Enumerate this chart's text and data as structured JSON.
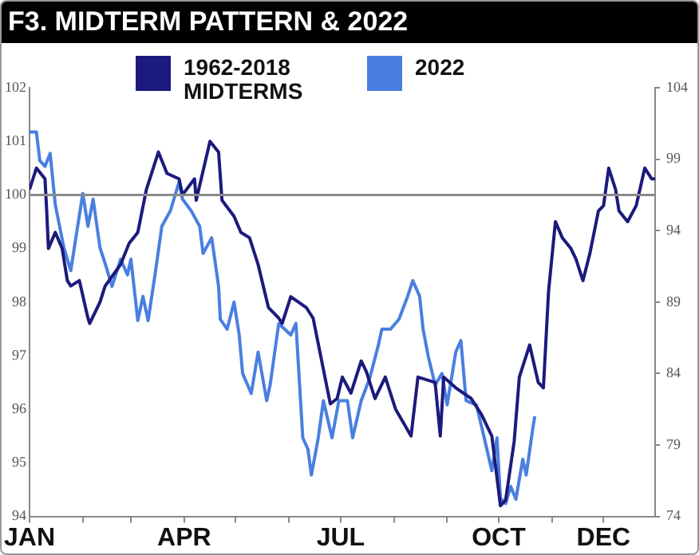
{
  "chart_data": {
    "type": "line",
    "title": "F3. MIDTERM PATTERN & 2022",
    "xlim": [
      "--01-01",
      "--12-31"
    ],
    "xticks": [
      {
        "value": "--01-01",
        "label": "JAN"
      },
      {
        "value": "--02-01",
        "label": null
      },
      {
        "value": "--03-01",
        "label": null
      },
      {
        "value": "--04-01",
        "label": "APR"
      },
      {
        "value": "--05-01",
        "label": null
      },
      {
        "value": "--06-01",
        "label": null
      },
      {
        "value": "--07-01",
        "label": "JUL"
      },
      {
        "value": "--08-01",
        "label": null
      },
      {
        "value": "--09-01",
        "label": null
      },
      {
        "value": "--10-01",
        "label": "OCT"
      },
      {
        "value": "--11-01",
        "label": null
      },
      {
        "value": "--12-01",
        "label": "DEC"
      }
    ],
    "ylim": [
      94,
      102
    ],
    "yticks": [
      94,
      95,
      96,
      97,
      98,
      99,
      100,
      101,
      102
    ],
    "y2lim": [
      74,
      104
    ],
    "y2ticks": [
      74,
      79,
      84,
      89,
      94,
      99,
      104
    ],
    "grid": false,
    "legend": "top",
    "marker": "none",
    "line_style": "solid",
    "ref_lines": [
      {
        "axis": "y",
        "value": 100,
        "label": null,
        "color": "#8a8a8a"
      }
    ],
    "series": [
      {
        "name": "1962-2018 MIDTERMS",
        "color": "#1c1a7c",
        "axis": "y",
        "x": [
          "--01-01",
          "--01-05",
          "--01-10",
          "--01-11",
          "--01-12",
          "--01-16",
          "--01-20",
          "--01-23",
          "--01-25",
          "--01-30",
          "--02-04",
          "--02-05",
          "--02-11",
          "--02-14",
          "--02-23",
          "--02-28",
          "--03-05",
          "--03-10",
          "--03-17",
          "--03-22",
          "--03-29",
          "--03-31",
          "--04-07",
          "--04-08",
          "--04-16",
          "--04-21",
          "--04-23",
          "--04-30",
          "--05-04",
          "--05-09",
          "--05-14",
          "--05-20",
          "--05-26",
          "--05-28",
          "--06-02",
          "--06-11",
          "--06-15",
          "--06-25",
          "--06-29",
          "--07-02",
          "--07-07",
          "--07-13",
          "--07-16",
          "--07-21",
          "--07-27",
          "--08-02",
          "--08-11",
          "--08-15",
          "--08-25",
          "--08-28",
          "--08-30",
          "--09-06",
          "--09-15",
          "--09-21",
          "--09-27",
          "--10-02",
          "--10-05",
          "--10-10",
          "--10-13",
          "--10-19",
          "--10-24",
          "--10-27",
          "--10-30",
          "--11-03",
          "--11-07",
          "--11-12",
          "--11-15",
          "--11-19",
          "--11-23",
          "--11-28",
          "--12-01",
          "--12-04",
          "--12-08",
          "--12-10",
          "--12-15",
          "--12-20",
          "--12-25",
          "--12-29",
          "--12-31"
        ],
        "values": [
          100.1,
          100.5,
          100.3,
          99.7,
          99.0,
          99.3,
          99.0,
          98.4,
          98.3,
          98.4,
          97.7,
          97.6,
          98.0,
          98.3,
          98.7,
          99.1,
          99.3,
          100.1,
          100.8,
          100.4,
          100.3,
          100.0,
          100.3,
          99.9,
          101.0,
          100.8,
          99.9,
          99.6,
          99.3,
          99.2,
          98.7,
          97.9,
          97.7,
          97.6,
          98.1,
          97.9,
          97.7,
          96.1,
          96.2,
          96.6,
          96.3,
          96.9,
          96.7,
          96.2,
          96.6,
          96.0,
          95.5,
          96.6,
          96.5,
          95.5,
          96.6,
          96.4,
          96.2,
          95.9,
          95.5,
          94.2,
          94.3,
          95.4,
          96.6,
          97.2,
          96.5,
          96.4,
          98.2,
          99.5,
          99.2,
          99.0,
          98.8,
          98.4,
          98.9,
          99.7,
          99.8,
          100.5,
          100.1,
          99.7,
          99.5,
          99.8,
          100.5,
          100.3,
          100.3
        ]
      },
      {
        "name": "2022",
        "color": "#4a7fe0",
        "axis": "y2",
        "x": [
          "--01-01",
          "--01-05",
          "--01-07",
          "--01-10",
          "--01-13",
          "--01-16",
          "--01-21",
          "--01-25",
          "--01-29",
          "--02-01",
          "--02-04",
          "--02-07",
          "--02-11",
          "--02-14",
          "--02-18",
          "--02-23",
          "--02-27",
          "--03-01",
          "--03-05",
          "--03-08",
          "--03-11",
          "--03-15",
          "--03-19",
          "--03-24",
          "--03-27",
          "--03-29",
          "--03-31",
          "--04-05",
          "--04-10",
          "--04-12",
          "--04-17",
          "--04-21",
          "--04-22",
          "--04-26",
          "--04-30",
          "--05-03",
          "--05-05",
          "--05-10",
          "--05-14",
          "--05-19",
          "--05-21",
          "--05-26",
          "--06-02",
          "--06-05",
          "--06-09",
          "--06-12",
          "--06-14",
          "--06-18",
          "--06-21",
          "--06-26",
          "--06-30",
          "--07-05",
          "--07-08",
          "--07-13",
          "--07-18",
          "--07-23",
          "--07-25",
          "--07-30",
          "--08-04",
          "--08-09",
          "--08-12",
          "--08-16",
          "--08-18",
          "--08-21",
          "--08-25",
          "--08-29",
          "--09-01",
          "--09-06",
          "--09-09",
          "--09-12",
          "--09-18",
          "--09-22",
          "--09-27",
          "--09-30",
          "--10-02",
          "--10-05",
          "--10-08",
          "--10-11",
          "--10-15",
          "--10-17",
          "--10-21",
          "--10-22"
        ],
        "values": [
          100.9,
          100.9,
          98.9,
          98.5,
          99.4,
          95.8,
          92.8,
          91.2,
          94.3,
          96.6,
          94.3,
          96.2,
          92.8,
          91.7,
          90.1,
          92.0,
          90.9,
          92.0,
          87.7,
          89.4,
          87.7,
          90.9,
          94.3,
          95.4,
          96.6,
          97.4,
          96.2,
          95.4,
          94.3,
          92.4,
          93.5,
          90.1,
          87.8,
          87.1,
          89.0,
          86.7,
          84.0,
          82.6,
          85.5,
          82.1,
          83.2,
          87.5,
          86.7,
          87.5,
          79.5,
          78.7,
          76.9,
          79.5,
          82.1,
          79.5,
          82.1,
          82.1,
          79.5,
          82.1,
          83.7,
          86.0,
          87.1,
          87.1,
          87.8,
          89.4,
          90.5,
          89.4,
          87.1,
          85.2,
          83.2,
          84.0,
          81.8,
          85.5,
          86.3,
          82.1,
          81.8,
          79.8,
          77.2,
          79.5,
          75.3,
          74.9,
          76.1,
          75.2,
          78.0,
          76.9,
          80.3,
          81.0
        ]
      }
    ]
  }
}
